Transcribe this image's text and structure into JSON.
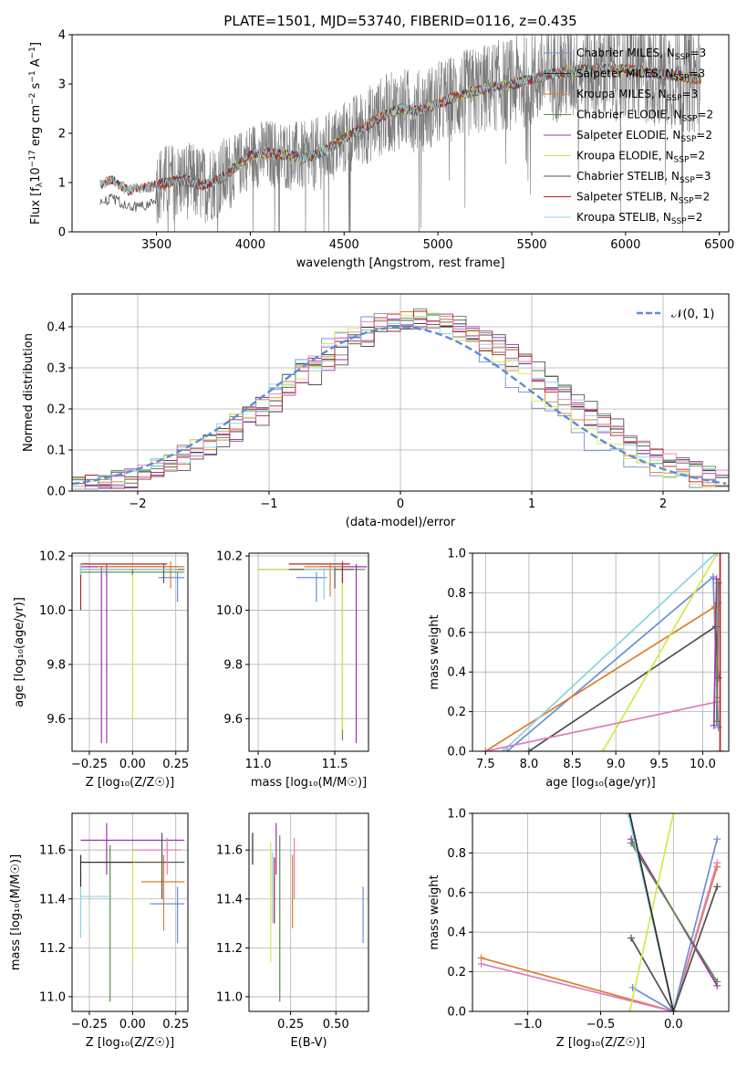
{
  "colors": {
    "chabrier_miles": "#6b8fd6",
    "salpeter_miles": "#2d2d2d",
    "kroupa_miles": "#e07b2a",
    "chabrier_elodie": "#5a8a4a",
    "salpeter_elodie": "#9b30b0",
    "kroupa_elodie": "#d4e84a",
    "chabrier_stelib": "#505050",
    "salpeter_stelib": "#b22222",
    "kroupa_stelib": "#88d4e0",
    "pink": "#e27ab8",
    "spectrum": "#7a7a7a",
    "gaussian": "#5b8dd9"
  },
  "chart_data": [
    {
      "id": "spectrum",
      "type": "line",
      "title": "PLATE=1501, MJD=53740, FIBERID=0116, z=0.435",
      "xlabel": "wavelength [Angstrom, rest frame]",
      "ylabel_main": "Flux [f",
      "ylabel_sub": "λ",
      "ylabel_rest": "10",
      "ylabel_exp": "−17",
      "ylabel_tail": " erg cm",
      "ylabel_exp2": "−2",
      "ylabel_tail2": " s",
      "ylabel_exp3": "−1",
      "ylabel_tail3": " A",
      "ylabel_exp4": "−1",
      "ylabel_end": "]",
      "xlim": [
        3050,
        6550
      ],
      "ylim": [
        0,
        4
      ],
      "xticks": [
        "3500",
        "4000",
        "4500",
        "5000",
        "5500",
        "6000",
        "6500"
      ],
      "xtick_values": [
        3500,
        4000,
        4500,
        5000,
        5500,
        6000,
        6500
      ],
      "yticks": [
        "0",
        "1",
        "2",
        "3",
        "4"
      ],
      "ytick_values": [
        0,
        1,
        2,
        3,
        4
      ],
      "continuum": [
        [
          3200,
          0.95
        ],
        [
          3260,
          1.05
        ],
        [
          3350,
          0.85
        ],
        [
          3450,
          0.9
        ],
        [
          3550,
          1.0
        ],
        [
          3650,
          1.05
        ],
        [
          3750,
          0.95
        ],
        [
          3850,
          1.1
        ],
        [
          3950,
          1.4
        ],
        [
          4000,
          1.55
        ],
        [
          4100,
          1.6
        ],
        [
          4200,
          1.55
        ],
        [
          4300,
          1.5
        ],
        [
          4400,
          1.65
        ],
        [
          4500,
          1.9
        ],
        [
          4600,
          2.1
        ],
        [
          4700,
          2.35
        ],
        [
          4800,
          2.5
        ],
        [
          4900,
          2.45
        ],
        [
          5000,
          2.6
        ],
        [
          5100,
          2.75
        ],
        [
          5200,
          2.85
        ],
        [
          5300,
          2.95
        ],
        [
          5400,
          3.0
        ],
        [
          5500,
          3.1
        ],
        [
          5600,
          3.2
        ],
        [
          5700,
          3.25
        ],
        [
          5800,
          3.3
        ],
        [
          5900,
          3.3
        ],
        [
          6000,
          3.3
        ],
        [
          6100,
          3.25
        ],
        [
          6200,
          3.2
        ],
        [
          6300,
          3.15
        ],
        [
          6400,
          3.1
        ]
      ],
      "legend": [
        {
          "label": "Chabrier MILES, N",
          "sub": "SSP",
          "tail": "=3",
          "color": "chabrier_miles"
        },
        {
          "label": "Salpeter MILES, N",
          "sub": "SSP",
          "tail": "=3",
          "color": "salpeter_miles"
        },
        {
          "label": "Kroupa MILES, N",
          "sub": "SSP",
          "tail": "=3",
          "color": "kroupa_miles"
        },
        {
          "label": "Chabrier ELODIE, N",
          "sub": "SSP",
          "tail": "=2",
          "color": "chabrier_elodie"
        },
        {
          "label": "Salpeter ELODIE, N",
          "sub": "SSP",
          "tail": "=2",
          "color": "salpeter_elodie"
        },
        {
          "label": "Kroupa ELODIE, N",
          "sub": "SSP",
          "tail": "=2",
          "color": "kroupa_elodie"
        },
        {
          "label": "Chabrier STELIB, N",
          "sub": "SSP",
          "tail": "=3",
          "color": "chabrier_stelib"
        },
        {
          "label": "Salpeter STELIB, N",
          "sub": "SSP",
          "tail": "=2",
          "color": "salpeter_stelib"
        },
        {
          "label": "Kroupa STELIB, N",
          "sub": "SSP",
          "tail": "=2",
          "color": "kroupa_stelib"
        }
      ]
    },
    {
      "id": "residuals",
      "type": "step",
      "xlabel": "(data-model)/error",
      "ylabel": "Normed distribution",
      "xlim": [
        -2.5,
        2.5
      ],
      "ylim": [
        0,
        0.48
      ],
      "xticks": [
        "−2",
        "−1",
        "0",
        "1",
        "2"
      ],
      "xtick_values": [
        -2,
        -1,
        0,
        1,
        2
      ],
      "yticks": [
        "0.0",
        "0.1",
        "0.2",
        "0.3",
        "0.4"
      ],
      "ytick_values": [
        0,
        0.1,
        0.2,
        0.3,
        0.4
      ],
      "legend_label": "𝒩(0, 1)",
      "bin_width": 0.1
    },
    {
      "id": "age_vs_Z",
      "type": "errorbar",
      "xlabel": "Z [log₁₀(Z/Z☉)]",
      "ylabel": "age  [log₁₀(age/yr)]",
      "xlim": [
        -0.35,
        0.32
      ],
      "ylim": [
        9.48,
        10.21
      ],
      "xticks": [
        "−0.25",
        "0.00",
        "0.25"
      ],
      "xtick_values": [
        -0.25,
        0,
        0.25
      ],
      "yticks": [
        "9.6",
        "9.8",
        "10.0",
        "10.2"
      ],
      "ytick_values": [
        9.6,
        9.8,
        10.0,
        10.2
      ],
      "points": [
        {
          "x": -0.15,
          "y": 10.16,
          "xl": -0.3,
          "xh": 0.27,
          "yl": 9.51,
          "yh": 10.17,
          "color": "salpeter_elodie"
        },
        {
          "x": -0.18,
          "y": 10.15,
          "xl": -0.3,
          "xh": 0.22,
          "yl": 9.51,
          "yh": 10.16,
          "color": "salpeter_elodie"
        },
        {
          "x": -0.3,
          "y": 10.17,
          "xl": -0.3,
          "xh": 0.2,
          "yl": 10.0,
          "yh": 10.17,
          "color": "salpeter_stelib"
        },
        {
          "x": 0.0,
          "y": 10.15,
          "xl": -0.3,
          "xh": 0.26,
          "yl": 9.59,
          "yh": 10.16,
          "color": "kroupa_elodie"
        },
        {
          "x": 0.26,
          "y": 10.12,
          "xl": 0.15,
          "xh": 0.3,
          "yl": 10.03,
          "yh": 10.14,
          "color": "chabrier_miles"
        },
        {
          "x": 0.18,
          "y": 10.15,
          "xl": -0.3,
          "xh": 0.3,
          "yl": 10.1,
          "yh": 10.17,
          "color": "chabrier_stelib"
        },
        {
          "x": 0.22,
          "y": 10.16,
          "xl": -0.2,
          "xh": 0.3,
          "yl": 10.08,
          "yh": 10.18,
          "color": "kroupa_miles"
        },
        {
          "x": -0.3,
          "y": 10.15,
          "xl": -0.3,
          "xh": 0.26,
          "yl": 10.13,
          "yh": 10.17,
          "color": "kroupa_stelib"
        },
        {
          "x": 0.0,
          "y": 10.14,
          "xl": -0.3,
          "xh": 0.3,
          "yl": 10.13,
          "yh": 10.15,
          "color": "chabrier_elodie"
        }
      ]
    },
    {
      "id": "age_vs_mass",
      "type": "errorbar",
      "xlabel": "mass [log₁₀(M/M☉)]",
      "ylabel": "",
      "xlim": [
        10.94,
        11.72
      ],
      "ylim": [
        9.48,
        10.21
      ],
      "xticks": [
        "11.0",
        "11.5"
      ],
      "xtick_values": [
        11.0,
        11.5
      ],
      "yticks": [
        "9.6",
        "9.8",
        "10.0",
        "10.2"
      ],
      "ytick_values": [
        9.6,
        9.8,
        10.0,
        10.2
      ],
      "points": [
        {
          "x": 11.64,
          "y": 10.16,
          "xl": 11.4,
          "xh": 11.71,
          "yl": 9.51,
          "yh": 10.17,
          "color": "salpeter_elodie"
        },
        {
          "x": 11.55,
          "y": 10.15,
          "xl": 11.0,
          "xh": 11.7,
          "yl": 9.52,
          "yh": 10.16,
          "color": "chabrier_elodie"
        },
        {
          "x": 11.55,
          "y": 10.15,
          "xl": 11.0,
          "xh": 11.6,
          "yl": 9.56,
          "yh": 10.16,
          "color": "kroupa_elodie"
        },
        {
          "x": 11.38,
          "y": 10.12,
          "xl": 11.25,
          "xh": 11.45,
          "yl": 10.03,
          "yh": 10.14,
          "color": "chabrier_miles"
        },
        {
          "x": 11.55,
          "y": 10.17,
          "xl": 11.2,
          "xh": 11.6,
          "yl": 10.1,
          "yh": 10.18,
          "color": "salpeter_stelib"
        },
        {
          "x": 11.5,
          "y": 10.15,
          "xl": 11.2,
          "xh": 11.62,
          "yl": 10.08,
          "yh": 10.16,
          "color": "chabrier_stelib"
        },
        {
          "x": 11.47,
          "y": 10.16,
          "xl": 11.3,
          "xh": 11.55,
          "yl": 10.05,
          "yh": 10.17,
          "color": "kroupa_miles"
        },
        {
          "x": 11.43,
          "y": 10.15,
          "xl": 11.3,
          "xh": 11.5,
          "yl": 10.04,
          "yh": 10.16,
          "color": "kroupa_stelib"
        }
      ]
    },
    {
      "id": "massweight_vs_age",
      "type": "line",
      "xlabel": "age  [log₁₀(age/yr)]",
      "ylabel": "mass weight",
      "xlim": [
        7.35,
        10.3
      ],
      "ylim": [
        0,
        1.0
      ],
      "xticks": [
        "7.5",
        "8.0",
        "8.5",
        "9.0",
        "9.5",
        "10.0"
      ],
      "xtick_values": [
        7.5,
        8.0,
        8.5,
        9.0,
        9.5,
        10.0
      ],
      "yticks": [
        "0.0",
        "0.2",
        "0.4",
        "0.6",
        "0.8",
        "1.0"
      ],
      "ytick_values": [
        0,
        0.2,
        0.4,
        0.6,
        0.8,
        1.0
      ],
      "series": [
        {
          "color": "chabrier_miles",
          "points": [
            [
              7.75,
              0.0
            ],
            [
              10.12,
              0.88
            ],
            [
              10.18,
              0.12
            ]
          ]
        },
        {
          "color": "kroupa_miles",
          "points": [
            [
              7.5,
              0.0
            ],
            [
              10.14,
              0.73
            ],
            [
              10.17,
              0.27
            ]
          ]
        },
        {
          "color": "chabrier_stelib",
          "points": [
            [
              8.0,
              0.0
            ],
            [
              10.15,
              0.63
            ],
            [
              10.18,
              0.37
            ]
          ]
        },
        {
          "color": "kroupa_elodie",
          "points": [
            [
              8.85,
              0.0
            ],
            [
              10.17,
              1.0
            ]
          ]
        },
        {
          "color": "kroupa_stelib",
          "points": [
            [
              7.7,
              0.0
            ],
            [
              10.15,
              1.0
            ]
          ]
        },
        {
          "color": "pink",
          "points": [
            [
              7.5,
              0.0
            ],
            [
              10.17,
              0.25
            ],
            [
              10.18,
              0.75
            ]
          ]
        },
        {
          "color": "salpeter_elodie",
          "points": [
            [
              10.13,
              0.13
            ],
            [
              10.16,
              0.87
            ]
          ]
        },
        {
          "color": "chabrier_elodie",
          "points": [
            [
              10.16,
              0.15
            ],
            [
              10.18,
              0.85
            ]
          ]
        },
        {
          "color": "salpeter_stelib",
          "points": [
            [
              10.2,
              0.0
            ],
            [
              10.2,
              1.0
            ]
          ]
        }
      ]
    },
    {
      "id": "mass_vs_Z",
      "type": "errorbar",
      "xlabel": "Z [log₁₀(Z/Z☉)]",
      "ylabel": "mass [log₁₀(M/M☉)]",
      "xlim": [
        -0.35,
        0.32
      ],
      "ylim": [
        10.94,
        11.75
      ],
      "xticks": [
        "−0.25",
        "0.00",
        "0.25"
      ],
      "xtick_values": [
        -0.25,
        0,
        0.25
      ],
      "yticks": [
        "11.0",
        "11.2",
        "11.4",
        "11.6"
      ],
      "ytick_values": [
        11.0,
        11.2,
        11.4,
        11.6
      ],
      "points": [
        {
          "x": -0.15,
          "y": 11.64,
          "xl": -0.3,
          "xh": 0.3,
          "yl": 11.5,
          "yh": 11.71,
          "color": "salpeter_elodie"
        },
        {
          "x": -0.13,
          "y": 11.55,
          "xl": -0.3,
          "xh": 0.3,
          "yl": 10.98,
          "yh": 11.62,
          "color": "chabrier_elodie"
        },
        {
          "x": 0.0,
          "y": 11.55,
          "xl": -0.3,
          "xh": 0.25,
          "yl": 11.14,
          "yh": 11.6,
          "color": "kroupa_elodie"
        },
        {
          "x": 0.26,
          "y": 11.38,
          "xl": 0.1,
          "xh": 0.3,
          "yl": 11.22,
          "yh": 11.45,
          "color": "chabrier_miles"
        },
        {
          "x": 0.18,
          "y": 11.47,
          "xl": 0.05,
          "xh": 0.3,
          "yl": 11.27,
          "yh": 11.58,
          "color": "kroupa_miles"
        },
        {
          "x": 0.17,
          "y": 11.55,
          "xl": -0.3,
          "xh": 0.3,
          "yl": 11.4,
          "yh": 11.67,
          "color": "chabrier_stelib"
        },
        {
          "x": 0.2,
          "y": 11.6,
          "xl": 0.0,
          "xh": 0.28,
          "yl": 11.5,
          "yh": 11.65,
          "color": "pink"
        },
        {
          "x": -0.3,
          "y": 11.41,
          "xl": -0.3,
          "xh": -0.12,
          "yl": 11.24,
          "yh": 11.5,
          "color": "kroupa_stelib"
        },
        {
          "x": -0.3,
          "y": 11.55,
          "xl": -0.3,
          "xh": 0.0,
          "yl": 11.45,
          "yh": 11.58,
          "color": "salpeter_miles"
        }
      ]
    },
    {
      "id": "mass_vs_ebv",
      "type": "errorbar",
      "xlabel": "E(B-V)",
      "ylabel": "",
      "xlim": [
        0.02,
        0.68
      ],
      "ylim": [
        10.94,
        11.75
      ],
      "xticks": [
        "0.25",
        "0.50"
      ],
      "xtick_values": [
        0.25,
        0.5
      ],
      "yticks": [
        "11.0",
        "11.2",
        "11.4",
        "11.6"
      ],
      "ytick_values": [
        11.0,
        11.2,
        11.4,
        11.6
      ],
      "points": [
        {
          "x": 0.04,
          "y": 11.6,
          "yl": 11.54,
          "yh": 11.67,
          "color": "salpeter_miles"
        },
        {
          "x": 0.14,
          "y": 11.45,
          "yl": 11.14,
          "yh": 11.63,
          "color": "kroupa_elodie"
        },
        {
          "x": 0.15,
          "y": 11.45,
          "yl": 11.3,
          "yh": 11.59,
          "color": "kroupa_stelib"
        },
        {
          "x": 0.16,
          "y": 11.5,
          "yl": 11.3,
          "yh": 11.57,
          "color": "salpeter_stelib"
        },
        {
          "x": 0.17,
          "y": 11.6,
          "yl": 11.5,
          "yh": 11.71,
          "color": "salpeter_elodie"
        },
        {
          "x": 0.19,
          "y": 11.45,
          "yl": 10.98,
          "yh": 11.66,
          "color": "chabrier_elodie"
        },
        {
          "x": 0.26,
          "y": 11.45,
          "yl": 11.28,
          "yh": 11.58,
          "color": "kroupa_miles"
        },
        {
          "x": 0.27,
          "y": 11.55,
          "yl": 11.4,
          "yh": 11.65,
          "color": "pink"
        },
        {
          "x": 0.65,
          "y": 11.35,
          "yl": 11.22,
          "yh": 11.45,
          "color": "chabrier_miles"
        }
      ]
    },
    {
      "id": "massweight_vs_Z",
      "type": "line",
      "xlabel": "Z [log₁₀(Z/Z☉)]",
      "ylabel": "mass weight",
      "xlim": [
        -1.38,
        0.38
      ],
      "ylim": [
        0,
        1.0
      ],
      "xticks": [
        "−1.0",
        "−0.5",
        "0.0"
      ],
      "xtick_values": [
        -1.0,
        -0.5,
        0.0
      ],
      "yticks": [
        "0.0",
        "0.2",
        "0.4",
        "0.6",
        "0.8",
        "1.0"
      ],
      "ytick_values": [
        0,
        0.2,
        0.4,
        0.6,
        0.8,
        1.0
      ],
      "series": [
        {
          "color": "kroupa_miles",
          "points": [
            [
              -1.32,
              0.27
            ],
            [
              0.0,
              0.0
            ],
            [
              0.3,
              0.73
            ]
          ]
        },
        {
          "color": "pink",
          "points": [
            [
              -1.32,
              0.24
            ],
            [
              0.0,
              0.0
            ],
            [
              0.3,
              0.75
            ]
          ]
        },
        {
          "color": "chabrier_miles",
          "points": [
            [
              -0.28,
              0.12
            ],
            [
              0.0,
              0.0
            ],
            [
              0.3,
              0.87
            ]
          ]
        },
        {
          "color": "chabrier_stelib",
          "points": [
            [
              -0.29,
              0.37
            ],
            [
              0.0,
              0.0
            ],
            [
              0.3,
              0.63
            ]
          ]
        },
        {
          "color": "salpeter_elodie",
          "points": [
            [
              -0.29,
              0.87
            ],
            [
              0.3,
              0.13
            ]
          ]
        },
        {
          "color": "chabrier_elodie",
          "points": [
            [
              -0.29,
              0.85
            ],
            [
              0.3,
              0.15
            ]
          ]
        },
        {
          "color": "kroupa_elodie",
          "points": [
            [
              -0.3,
              0.0
            ],
            [
              0.0,
              1.0
            ]
          ]
        },
        {
          "color": "kroupa_stelib",
          "points": [
            [
              -0.31,
              1.0
            ],
            [
              0.0,
              0.0
            ]
          ]
        },
        {
          "color": "salpeter_miles",
          "points": [
            [
              -0.3,
              1.0
            ],
            [
              0.0,
              0.0
            ]
          ]
        }
      ]
    }
  ]
}
